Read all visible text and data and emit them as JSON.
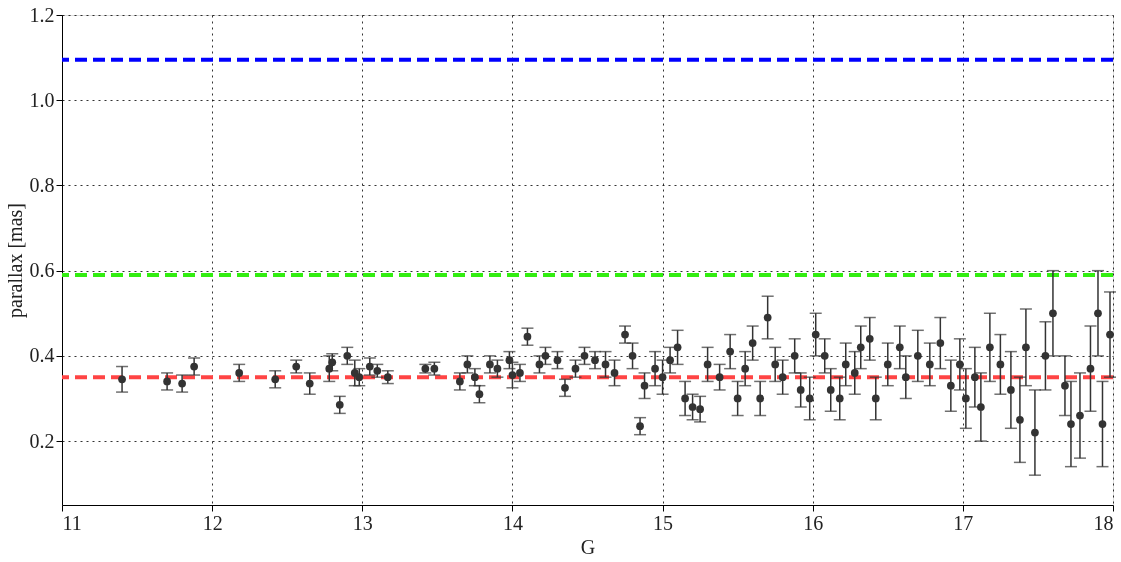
{
  "chart_data": {
    "type": "scatter",
    "xlabel": "G",
    "ylabel": "parallax [mas]",
    "xlim": [
      11,
      18
    ],
    "ylim": [
      0.05,
      1.2
    ],
    "xticks": [
      11,
      12,
      13,
      14,
      15,
      16,
      17,
      18
    ],
    "yticks": [
      0.2,
      0.4,
      0.6,
      0.8,
      {
        "value": 1.0,
        "label": "1.0"
      },
      1.2
    ],
    "grid": true,
    "marker": "circle",
    "ref_lines": [
      {
        "axis": "y",
        "value": 1.095,
        "color": "#0000ff",
        "line_style": "dashed"
      },
      {
        "axis": "y",
        "value": 0.59,
        "color": "#33ee11",
        "line_style": "dashed"
      },
      {
        "axis": "y",
        "value": 0.35,
        "color": "#ff4444",
        "line_style": "dashed"
      }
    ],
    "series": [
      {
        "color": "#333333",
        "x": [
          11.4,
          11.7,
          11.8,
          11.88,
          12.18,
          12.42,
          12.56,
          12.65,
          12.78,
          12.8,
          12.85,
          12.9,
          12.95,
          12.98,
          13.05,
          13.1,
          13.17,
          13.42,
          13.48,
          13.65,
          13.7,
          13.75,
          13.78,
          13.85,
          13.9,
          13.98,
          14.0,
          14.05,
          14.1,
          14.18,
          14.22,
          14.3,
          14.35,
          14.42,
          14.48,
          14.55,
          14.62,
          14.68,
          14.75,
          14.8,
          14.85,
          14.88,
          14.95,
          15.0,
          15.05,
          15.1,
          15.15,
          15.2,
          15.25,
          15.3,
          15.38,
          15.45,
          15.5,
          15.55,
          15.6,
          15.65,
          15.7,
          15.75,
          15.8,
          15.88,
          15.92,
          15.98,
          16.02,
          16.08,
          16.12,
          16.18,
          16.22,
          16.28,
          16.32,
          16.38,
          16.42,
          16.5,
          16.58,
          16.62,
          16.7,
          16.78,
          16.85,
          16.92,
          16.98,
          17.02,
          17.08,
          17.12,
          17.18,
          17.25,
          17.32,
          17.38,
          17.42,
          17.48,
          17.55,
          17.6,
          17.68,
          17.72,
          17.78,
          17.85,
          17.9,
          17.93,
          17.98
        ],
        "values": [
          0.345,
          0.34,
          0.335,
          0.375,
          0.36,
          0.345,
          0.375,
          0.335,
          0.37,
          0.385,
          0.285,
          0.4,
          0.36,
          0.35,
          0.375,
          0.365,
          0.35,
          0.37,
          0.37,
          0.34,
          0.38,
          0.35,
          0.31,
          0.38,
          0.37,
          0.39,
          0.355,
          0.36,
          0.445,
          0.38,
          0.4,
          0.39,
          0.325,
          0.37,
          0.4,
          0.39,
          0.38,
          0.36,
          0.45,
          0.4,
          0.235,
          0.33,
          0.37,
          0.35,
          0.39,
          0.42,
          0.3,
          0.28,
          0.275,
          0.38,
          0.35,
          0.41,
          0.3,
          0.37,
          0.43,
          0.3,
          0.49,
          0.38,
          0.35,
          0.4,
          0.32,
          0.3,
          0.45,
          0.4,
          0.32,
          0.3,
          0.38,
          0.36,
          0.42,
          0.44,
          0.3,
          0.38,
          0.42,
          0.35,
          0.4,
          0.38,
          0.43,
          0.33,
          0.38,
          0.3,
          0.35,
          0.28,
          0.42,
          0.38,
          0.32,
          0.25,
          0.42,
          0.22,
          0.4,
          0.5,
          0.33,
          0.24,
          0.26,
          0.37,
          0.5,
          0.24,
          0.45
        ],
        "errors": [
          0.03,
          0.02,
          0.02,
          0.02,
          0.02,
          0.02,
          0.015,
          0.025,
          0.03,
          0.02,
          0.02,
          0.02,
          0.03,
          0.02,
          0.02,
          0.015,
          0.015,
          0.01,
          0.015,
          0.02,
          0.02,
          0.02,
          0.02,
          0.02,
          0.02,
          0.02,
          0.03,
          0.02,
          0.02,
          0.02,
          0.02,
          0.02,
          0.02,
          0.02,
          0.02,
          0.02,
          0.03,
          0.03,
          0.02,
          0.03,
          0.02,
          0.03,
          0.04,
          0.04,
          0.03,
          0.04,
          0.04,
          0.03,
          0.03,
          0.04,
          0.03,
          0.04,
          0.04,
          0.04,
          0.04,
          0.04,
          0.05,
          0.04,
          0.04,
          0.04,
          0.04,
          0.05,
          0.05,
          0.04,
          0.05,
          0.05,
          0.05,
          0.05,
          0.05,
          0.05,
          0.05,
          0.05,
          0.05,
          0.05,
          0.06,
          0.05,
          0.06,
          0.06,
          0.06,
          0.07,
          0.07,
          0.08,
          0.08,
          0.07,
          0.09,
          0.1,
          0.09,
          0.1,
          0.08,
          0.1,
          0.07,
          0.1,
          0.1,
          0.1,
          0.1,
          0.1,
          0.1
        ]
      }
    ]
  }
}
